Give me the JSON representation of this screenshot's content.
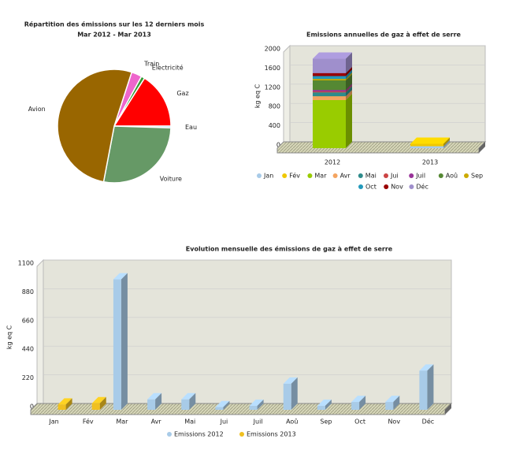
{
  "chart_data": [
    {
      "type": "pie",
      "title": "Répartition des émissions sur les 12 derniers mois",
      "subtitle": "Mar 2012 - Mar 2013",
      "categories": [
        "Train",
        "Electricité",
        "Gaz",
        "Eau",
        "Voiture",
        "Avion"
      ],
      "values": [
        3,
        1,
        16,
        0.5,
        27.5,
        52
      ],
      "colors": [
        "#ee66cc",
        "#339933",
        "#ff0000",
        "#66ccff",
        "#669966",
        "#996600"
      ]
    },
    {
      "type": "stacked-bar",
      "title": "Emissions annuelles de gaz à effet de serre",
      "y_label": "kg eq C",
      "categories": [
        "2012",
        "2013"
      ],
      "ylim": [
        0,
        2000
      ],
      "yticks": [
        0,
        400,
        800,
        1200,
        1600,
        2000
      ],
      "grid": true,
      "series": [
        {
          "name": "Jan",
          "color": "#a8cbe8",
          "values": [
            0,
            40
          ]
        },
        {
          "name": "Fév",
          "color": "#f0c800",
          "values": [
            0,
            50
          ]
        },
        {
          "name": "Mar",
          "color": "#99cc00",
          "values": [
            1000,
            0
          ]
        },
        {
          "name": "Avr",
          "color": "#f4a460",
          "values": [
            80,
            0
          ]
        },
        {
          "name": "Mai",
          "color": "#2e8b8b",
          "values": [
            80,
            0
          ]
        },
        {
          "name": "Jui",
          "color": "#cc4444",
          "values": [
            20,
            0
          ]
        },
        {
          "name": "Juil",
          "color": "#993399",
          "values": [
            30,
            0
          ]
        },
        {
          "name": "Aoû",
          "color": "#558833",
          "values": [
            200,
            0
          ]
        },
        {
          "name": "Sep",
          "color": "#ccaa00",
          "values": [
            30,
            0
          ]
        },
        {
          "name": "Oct",
          "color": "#2299bb",
          "values": [
            60,
            0
          ]
        },
        {
          "name": "Nov",
          "color": "#990000",
          "values": [
            60,
            0
          ]
        },
        {
          "name": "Déc",
          "color": "#9f8fcc",
          "values": [
            300,
            0
          ]
        }
      ]
    },
    {
      "type": "bar",
      "title": "Evolution mensuelle des émissions de gaz à effet de serre",
      "y_label": "kg eq C",
      "categories": [
        "Jan",
        "Fév",
        "Mar",
        "Avr",
        "Mai",
        "Jui",
        "Juil",
        "Aoû",
        "Sep",
        "Oct",
        "Nov",
        "Déc"
      ],
      "ylim": [
        0,
        1100
      ],
      "yticks": [
        0,
        220,
        440,
        660,
        880,
        1100
      ],
      "grid": true,
      "series": [
        {
          "name": "Emissions 2012",
          "color": "#a8cbe8",
          "values": [
            0,
            0,
            1000,
            80,
            80,
            20,
            30,
            200,
            30,
            60,
            60,
            300
          ]
        },
        {
          "name": "Emissions 2013",
          "color": "#f0c020",
          "values": [
            40,
            50,
            0,
            0,
            0,
            0,
            0,
            0,
            0,
            0,
            0,
            0
          ]
        }
      ]
    }
  ]
}
